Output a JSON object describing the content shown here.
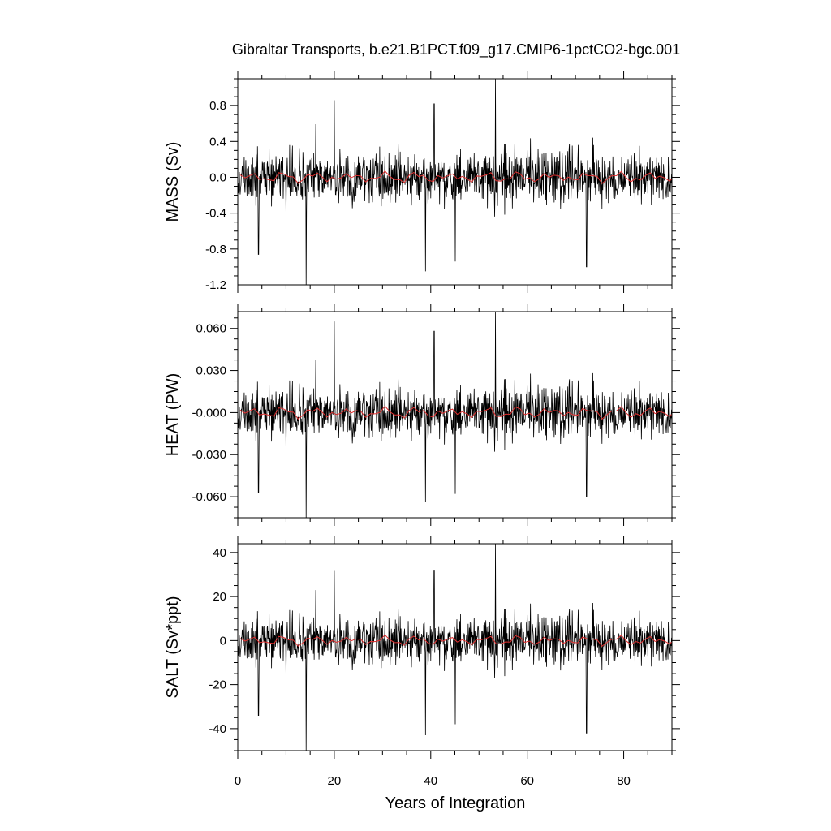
{
  "chart_data": {
    "type": "line",
    "title": "Gibraltar Transports, b.e21.B1PCT.f09_g17.CMIP6-1pctCO2-bgc.001",
    "xlabel": "Years of Integration",
    "xlim": [
      0,
      90
    ],
    "x_ticks": [
      "0",
      "20",
      "40",
      "60",
      "80"
    ],
    "series_colors": {
      "monthly": "#000000",
      "annual": "#e03030"
    },
    "panels": [
      {
        "id": "mass",
        "ylabel": "MASS (Sv)",
        "ylim": [
          -1.2,
          1.1
        ],
        "y_ticks": [
          {
            "value": 0.8,
            "label": "0.8"
          },
          {
            "value": 0.4,
            "label": "0.4"
          },
          {
            "value": 0.0,
            "label": "0.0"
          },
          {
            "value": -0.4,
            "label": "-0.4"
          },
          {
            "value": -0.8,
            "label": "-0.8"
          },
          {
            "value": -1.2,
            "label": "-1.2"
          }
        ],
        "noise_amplitude": 0.22,
        "annual_amplitude": 0.06,
        "spikes": [
          {
            "x": 14.2,
            "y": -1.2
          },
          {
            "x": 20.0,
            "y": 0.86
          },
          {
            "x": 38.9,
            "y": -1.05
          },
          {
            "x": 40.7,
            "y": 0.82
          },
          {
            "x": 45.1,
            "y": -0.94
          },
          {
            "x": 53.4,
            "y": 1.1
          },
          {
            "x": 72.3,
            "y": -1.0
          },
          {
            "x": 4.3,
            "y": -0.86
          }
        ]
      },
      {
        "id": "heat",
        "ylabel": "HEAT (PW)",
        "ylim": [
          -0.075,
          0.072
        ],
        "y_ticks": [
          {
            "value": 0.06,
            "label": "0.060"
          },
          {
            "value": 0.03,
            "label": "0.030"
          },
          {
            "value": 0.0,
            "label": "-0.000"
          },
          {
            "value": -0.03,
            "label": "-0.030"
          },
          {
            "value": -0.06,
            "label": "-0.060"
          }
        ],
        "noise_amplitude": 0.014,
        "annual_amplitude": 0.004,
        "spikes": [
          {
            "x": 14.2,
            "y": -0.075
          },
          {
            "x": 20.0,
            "y": 0.065
          },
          {
            "x": 38.9,
            "y": -0.064
          },
          {
            "x": 40.7,
            "y": 0.058
          },
          {
            "x": 45.1,
            "y": -0.058
          },
          {
            "x": 53.4,
            "y": 0.072
          },
          {
            "x": 72.3,
            "y": -0.06
          },
          {
            "x": 4.3,
            "y": -0.057
          }
        ]
      },
      {
        "id": "salt",
        "ylabel": "SALT (Sv*ppt)",
        "ylim": [
          -50,
          44
        ],
        "y_ticks": [
          {
            "value": 40,
            "label": "40"
          },
          {
            "value": 20,
            "label": "20"
          },
          {
            "value": 0,
            "label": "0"
          },
          {
            "value": -20,
            "label": "-20"
          },
          {
            "value": -40,
            "label": "-40"
          }
        ],
        "noise_amplitude": 8.5,
        "annual_amplitude": 2.2,
        "spikes": [
          {
            "x": 14.2,
            "y": -50
          },
          {
            "x": 20.0,
            "y": 32
          },
          {
            "x": 38.9,
            "y": -43
          },
          {
            "x": 40.7,
            "y": 32
          },
          {
            "x": 45.1,
            "y": -38
          },
          {
            "x": 53.4,
            "y": 44
          },
          {
            "x": 72.3,
            "y": -42
          },
          {
            "x": 4.3,
            "y": -34
          }
        ]
      }
    ]
  }
}
